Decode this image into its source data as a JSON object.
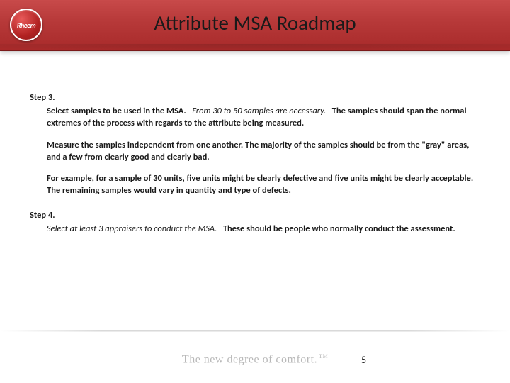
{
  "header": {
    "title": "Attribute MSA Roadmap",
    "logo_text": "Rheem",
    "bg_gradient_top": "#c84a4a",
    "bg_gradient_bottom": "#a82a2a"
  },
  "content": {
    "step3": {
      "label": "Step 3.",
      "p1_lead_bold": "Select samples to be used in the MSA.",
      "p1_mid_italic": "From 30 to 50 samples are necessary.",
      "p1_tail_bold": "The samples should span the normal extremes of the process with regards to the attribute being measured.",
      "p2": "Measure the samples independent from one another. The majority of the samples should be from the \"gray\" areas, and a few from clearly good and clearly bad.",
      "p3": "For example, for a sample of 30 units, five units might be clearly defective and five units might be clearly acceptable. The remaining samples would vary in quantity and type of defects."
    },
    "step4": {
      "label": "Step 4.",
      "p1_lead_italic": "Select at least 3 appraisers to conduct the MSA.",
      "p1_tail_bold": "These should be people who normally conduct the assessment."
    }
  },
  "footer": {
    "tagline": "The new degree of comfort.",
    "tm": "TM",
    "page_number": "5"
  },
  "colors": {
    "text": "#1a1a1a",
    "tagline": "#b8b8b8",
    "background": "#ffffff"
  },
  "typography": {
    "title_fontsize": 29,
    "body_fontsize": 12.5,
    "tagline_fontsize": 16
  }
}
